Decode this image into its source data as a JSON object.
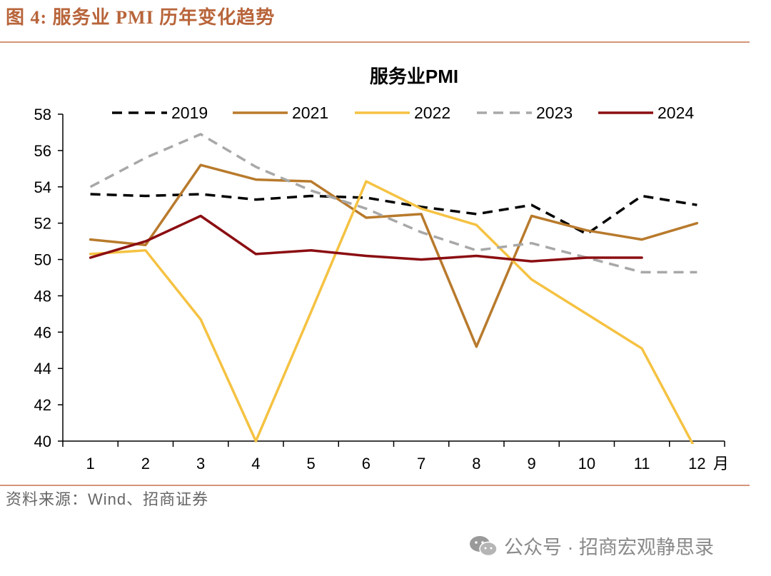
{
  "header": {
    "figure_title": "图 4:  服务业 PMI 历年变化趋势"
  },
  "footer": {
    "source": "资料来源：Wind、招商证券",
    "watermark": "公众号 · 招商宏观静思录"
  },
  "chart_data": {
    "type": "line",
    "title": "服务业PMI",
    "xlabel": "月",
    "ylabel": "",
    "categories": [
      "1",
      "2",
      "3",
      "4",
      "5",
      "6",
      "7",
      "8",
      "9",
      "10",
      "11",
      "12"
    ],
    "ylim": [
      40,
      58
    ],
    "yticks": [
      "58",
      "56",
      "54",
      "52",
      "50",
      "48",
      "46",
      "44",
      "42",
      "40"
    ],
    "legend_position": "top",
    "grid": false,
    "series": [
      {
        "name": "2019",
        "color": "#000000",
        "dash": "dashed",
        "values": [
          53.6,
          53.5,
          53.6,
          53.3,
          53.5,
          53.4,
          52.9,
          52.5,
          53.0,
          51.4,
          53.5,
          53.0
        ]
      },
      {
        "name": "2021",
        "color": "#b87a2c",
        "dash": "solid",
        "values": [
          51.1,
          50.8,
          55.2,
          54.4,
          54.3,
          52.3,
          52.5,
          45.2,
          52.4,
          51.6,
          51.1,
          52.0
        ]
      },
      {
        "name": "2022",
        "color": "#f5c242",
        "dash": "solid",
        "values": [
          50.3,
          50.5,
          46.7,
          40.0,
          47.1,
          54.3,
          52.8,
          51.9,
          48.9,
          47.0,
          45.1,
          39.4
        ]
      },
      {
        "name": "2023",
        "color": "#a8a8a8",
        "dash": "dashed",
        "values": [
          54.0,
          55.6,
          56.9,
          55.1,
          53.8,
          52.8,
          51.5,
          50.5,
          50.9,
          50.1,
          49.3,
          49.3
        ]
      },
      {
        "name": "2024",
        "color": "#8b0e12",
        "dash": "solid",
        "values": [
          50.1,
          51.0,
          52.4,
          50.3,
          50.5,
          50.2,
          50.0,
          50.2,
          49.9,
          50.1,
          50.1,
          null
        ]
      }
    ]
  }
}
